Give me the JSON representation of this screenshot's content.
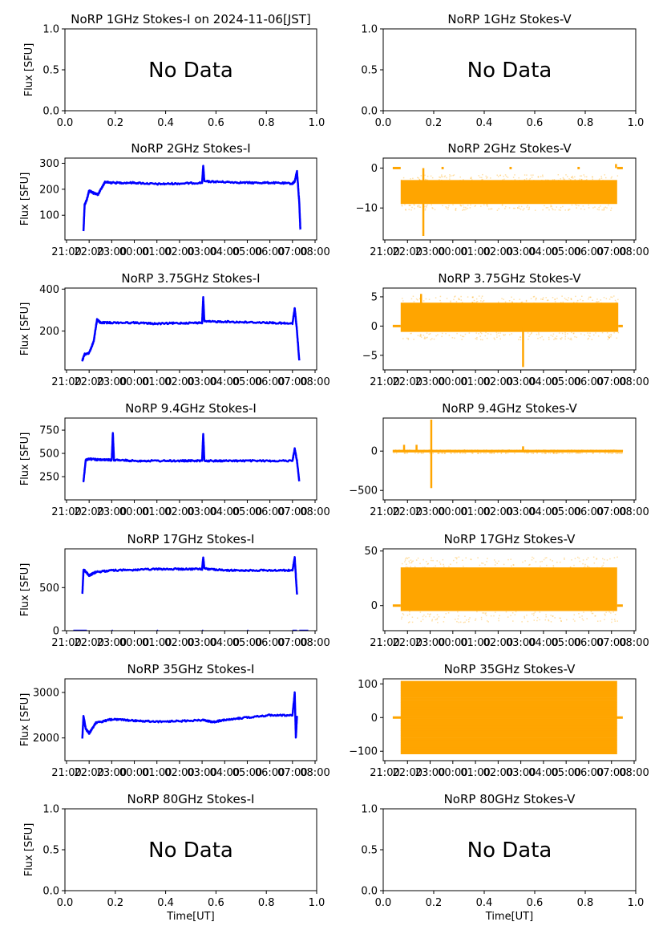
{
  "figure": {
    "colors": {
      "stokes_i": "#0000ff",
      "stokes_v": "#ffa500",
      "axis": "#000000"
    },
    "no_data_label": "No Data",
    "ylabel": "Flux [SFU]",
    "xlabel": "Time[UT]"
  },
  "chart_data": [
    {
      "id": "1ghz-i",
      "type": "scatter",
      "title": "NoRP 1GHz Stokes-I on 2024-11-06[JST]",
      "no_data": true,
      "xlabel": "",
      "ylabel": "Flux [SFU]",
      "xlim": [
        0,
        1
      ],
      "ylim": [
        0,
        1
      ],
      "xticks": [
        "0.0",
        "0.2",
        "0.4",
        "0.6",
        "0.8",
        "1.0"
      ],
      "yticks": [
        0,
        0.5,
        1.0
      ],
      "ytick_labels": [
        "0.0",
        "0.5",
        "1.0"
      ]
    },
    {
      "id": "1ghz-v",
      "type": "scatter",
      "title": "NoRP 1GHz Stokes-V",
      "no_data": true,
      "xlabel": "",
      "ylabel": "",
      "xlim": [
        0,
        1
      ],
      "ylim": [
        0,
        1
      ],
      "xticks": [
        "0.0",
        "0.2",
        "0.4",
        "0.6",
        "0.8",
        "1.0"
      ],
      "yticks": [
        0,
        0.5,
        1.0
      ],
      "ytick_labels": [
        "0.0",
        "0.5",
        "1.0"
      ]
    },
    {
      "id": "2ghz-i",
      "type": "scatter",
      "title": "NoRP 2GHz Stokes-I",
      "stokes": "I",
      "xlabel": "",
      "ylabel": "Flux [SFU]",
      "ylim": [
        5,
        320
      ],
      "yticks": [
        100,
        200,
        300
      ],
      "ytick_labels": [
        "100",
        "200",
        "300"
      ],
      "series": [
        {
          "name": "Stokes-I",
          "x": [
            21.75,
            21.8,
            21.9,
            22.0,
            22.2,
            22.4,
            22.7,
            23.0,
            24.0,
            25.0,
            26.0,
            27.0,
            27.05,
            27.1,
            28.0,
            29.0,
            30.0,
            31.0,
            31.1,
            31.2,
            31.3,
            31.35
          ],
          "y": [
            40,
            140,
            160,
            195,
            185,
            180,
            228,
            225,
            225,
            220,
            222,
            225,
            290,
            230,
            228,
            225,
            225,
            222,
            230,
            270,
            150,
            45
          ]
        }
      ]
    },
    {
      "id": "2ghz-v",
      "type": "scatter",
      "title": "NoRP 2GHz Stokes-V",
      "stokes": "V",
      "xlabel": "",
      "ylabel": "",
      "ylim": [
        -18,
        2.5
      ],
      "yticks": [
        -10,
        0
      ],
      "ytick_labels": [
        "−10",
        "0"
      ],
      "series": [
        {
          "name": "Stokes-V",
          "band": {
            "x0": 21.7,
            "x1": 31.25,
            "ymin": -9,
            "ymax": -3
          },
          "zero_segments": [
            [
              21.35,
              21.7
            ],
            [
              23.5,
              23.6
            ],
            [
              26.5,
              26.6
            ],
            [
              29.5,
              29.6
            ],
            [
              31.25,
              31.5
            ]
          ],
          "outliers": [
            [
              22.7,
              -17
            ],
            [
              31.2,
              1
            ]
          ]
        }
      ]
    },
    {
      "id": "3.75ghz-i",
      "type": "scatter",
      "title": "NoRP 3.75GHz Stokes-I",
      "stokes": "I",
      "xlabel": "",
      "ylabel": "Flux [SFU]",
      "ylim": [
        15,
        405
      ],
      "yticks": [
        200,
        400
      ],
      "ytick_labels": [
        "200",
        "400"
      ],
      "series": [
        {
          "name": "Stokes-I",
          "x": [
            21.7,
            21.8,
            22.0,
            22.2,
            22.35,
            22.5,
            23.0,
            24.0,
            25.0,
            26.0,
            27.0,
            27.05,
            27.1,
            28.0,
            29.0,
            30.0,
            31.0,
            31.1,
            31.2,
            31.3
          ],
          "y": [
            60,
            90,
            95,
            150,
            255,
            240,
            240,
            240,
            235,
            238,
            240,
            360,
            245,
            245,
            242,
            240,
            235,
            310,
            200,
            60
          ]
        }
      ]
    },
    {
      "id": "3.75ghz-v",
      "type": "scatter",
      "title": "NoRP 3.75GHz Stokes-V",
      "stokes": "V",
      "xlabel": "",
      "ylabel": "",
      "ylim": [
        -7.5,
        6.5
      ],
      "yticks": [
        -5,
        0,
        5
      ],
      "ytick_labels": [
        "−5",
        "0",
        "5"
      ],
      "series": [
        {
          "name": "Stokes-V",
          "band": {
            "x0": 21.7,
            "x1": 31.3,
            "ymin": -1,
            "ymax": 4
          },
          "zero_segments": [
            [
              21.35,
              21.7
            ],
            [
              31.3,
              31.5
            ]
          ],
          "outliers": [
            [
              27.1,
              -7
            ],
            [
              22.6,
              5.5
            ]
          ]
        }
      ]
    },
    {
      "id": "9.4ghz-i",
      "type": "scatter",
      "title": "NoRP 9.4GHz Stokes-I",
      "stokes": "I",
      "xlabel": "",
      "ylabel": "Flux [SFU]",
      "ylim": [
        0,
        880
      ],
      "yticks": [
        250,
        500,
        750
      ],
      "ytick_labels": [
        "250",
        "500",
        "750"
      ],
      "series": [
        {
          "name": "Stokes-I",
          "x": [
            21.75,
            21.85,
            22.0,
            22.5,
            23.0,
            23.05,
            23.1,
            24.0,
            25.0,
            26.0,
            27.0,
            27.05,
            27.1,
            28.0,
            29.0,
            30.0,
            31.0,
            31.1,
            31.2,
            31.3
          ],
          "y": [
            200,
            430,
            440,
            430,
            430,
            720,
            430,
            420,
            420,
            420,
            420,
            710,
            420,
            420,
            420,
            420,
            420,
            550,
            420,
            200
          ]
        }
      ]
    },
    {
      "id": "9.4ghz-v",
      "type": "scatter",
      "title": "NoRP 9.4GHz Stokes-V",
      "stokes": "V",
      "xlabel": "",
      "ylabel": "",
      "ylim": [
        -620,
        420
      ],
      "yticks": [
        -500,
        0
      ],
      "ytick_labels": [
        "−500",
        "0"
      ],
      "series": [
        {
          "name": "Stokes-V",
          "band": {
            "x0": 21.35,
            "x1": 31.5,
            "ymin": -15,
            "ymax": 15
          },
          "zero_segments": [
            [
              21.35,
              31.5
            ]
          ],
          "outliers": [
            [
              23.05,
              400
            ],
            [
              23.05,
              -470
            ],
            [
              21.85,
              80
            ],
            [
              22.4,
              80
            ],
            [
              27.1,
              60
            ]
          ]
        }
      ]
    },
    {
      "id": "17ghz-i",
      "type": "scatter",
      "title": "NoRP 17GHz Stokes-I",
      "stokes": "I",
      "xlabel": "",
      "ylabel": "Flux [SFU]",
      "ylim": [
        0,
        950
      ],
      "yticks": [
        0,
        500
      ],
      "ytick_labels": [
        "0",
        "500"
      ],
      "series": [
        {
          "name": "Stokes-I",
          "x": [
            21.7,
            21.75,
            21.8,
            22.0,
            22.3,
            23.0,
            24.0,
            25.0,
            26.0,
            27.0,
            27.05,
            27.1,
            28.0,
            29.0,
            30.0,
            31.0,
            31.1,
            31.2
          ],
          "y": [
            420,
            700,
            700,
            640,
            680,
            700,
            705,
            715,
            715,
            715,
            850,
            720,
            700,
            700,
            700,
            700,
            850,
            420
          ]
        }
      ]
    },
    {
      "id": "17ghz-v",
      "type": "scatter",
      "title": "NoRP 17GHz Stokes-V",
      "stokes": "V",
      "xlabel": "",
      "ylabel": "",
      "ylim": [
        -23,
        52
      ],
      "yticks": [
        0,
        50
      ],
      "ytick_labels": [
        "0",
        "50"
      ],
      "series": [
        {
          "name": "Stokes-V",
          "band": {
            "x0": 21.7,
            "x1": 31.25,
            "ymin": -5,
            "ymax": 35
          },
          "zero_segments": [
            [
              21.35,
              21.7
            ],
            [
              31.25,
              31.5
            ]
          ],
          "outliers": []
        }
      ]
    },
    {
      "id": "35ghz-i",
      "type": "scatter",
      "title": "NoRP 35GHz Stokes-I",
      "stokes": "I",
      "xlabel": "",
      "ylabel": "Flux [SFU]",
      "ylim": [
        1500,
        3300
      ],
      "yticks": [
        2000,
        3000
      ],
      "ytick_labels": [
        "2000",
        "3000"
      ],
      "series": [
        {
          "name": "Stokes-I",
          "x": [
            21.7,
            21.75,
            21.85,
            22.0,
            22.3,
            23.0,
            24.0,
            25.0,
            26.0,
            27.0,
            27.5,
            28.0,
            29.0,
            30.0,
            31.0,
            31.1,
            31.15,
            31.2
          ],
          "y": [
            2000,
            2480,
            2200,
            2100,
            2330,
            2410,
            2380,
            2360,
            2370,
            2390,
            2350,
            2400,
            2450,
            2500,
            2500,
            3000,
            2000,
            2480
          ]
        }
      ]
    },
    {
      "id": "35ghz-v",
      "type": "scatter",
      "title": "NoRP 35GHz Stokes-V",
      "stokes": "V",
      "xlabel": "",
      "ylabel": "",
      "ylim": [
        -128,
        115
      ],
      "yticks": [
        -100,
        0,
        100
      ],
      "ytick_labels": [
        "−100",
        "0",
        "100"
      ],
      "series": [
        {
          "name": "Stokes-V",
          "band": {
            "x0": 21.7,
            "x1": 31.25,
            "ymin": -105,
            "ymax": 105,
            "striped": true
          },
          "zero_segments": [
            [
              21.35,
              31.5
            ]
          ],
          "outliers": []
        }
      ]
    },
    {
      "id": "80ghz-i",
      "type": "scatter",
      "title": "NoRP 80GHz Stokes-I",
      "no_data": true,
      "xlabel": "Time[UT]",
      "ylabel": "Flux [SFU]",
      "xlim": [
        0,
        1
      ],
      "ylim": [
        0,
        1
      ],
      "xticks": [
        "0.0",
        "0.2",
        "0.4",
        "0.6",
        "0.8",
        "1.0"
      ],
      "yticks": [
        0,
        0.5,
        1.0
      ],
      "ytick_labels": [
        "0.0",
        "0.5",
        "1.0"
      ]
    },
    {
      "id": "80ghz-v",
      "type": "scatter",
      "title": "NoRP 80GHz Stokes-V",
      "no_data": true,
      "xlabel": "Time[UT]",
      "ylabel": "",
      "xlim": [
        0,
        1
      ],
      "ylim": [
        0,
        1
      ],
      "xticks": [
        "0.0",
        "0.2",
        "0.4",
        "0.6",
        "0.8",
        "1.0"
      ],
      "yticks": [
        0,
        0.5,
        1.0
      ],
      "ytick_labels": [
        "0.0",
        "0.5",
        "1.0"
      ]
    }
  ],
  "time_axis": {
    "xlim": [
      21.0,
      32.0
    ],
    "tick_hours": [
      21,
      22,
      23,
      24,
      25,
      26,
      27,
      28,
      29,
      30,
      31,
      32
    ],
    "tick_labels": [
      "21:00",
      "22:00",
      "23:00",
      "00:00",
      "01:00",
      "02:00",
      "03:00",
      "04:00",
      "05:00",
      "06:00",
      "07:00",
      "08:00"
    ]
  }
}
